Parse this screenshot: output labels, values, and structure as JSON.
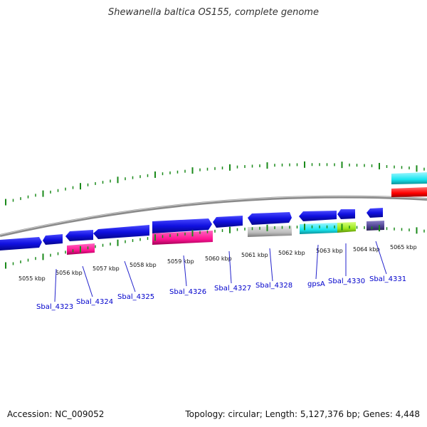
{
  "title": "Shewanella baltica OS155, complete genome",
  "footer": {
    "accession": "Accession: NC_009052",
    "stats": "Topology: circular; Length: 5,127,376 bp; Genes: 4,448"
  },
  "colors": {
    "cds": "#1010e0",
    "backbone": "#888888",
    "tick": "#1a8a1a",
    "cog_magenta": "#ff1493",
    "cog_gray": "#bdbdbd",
    "cog_cyan": "#19e6f0",
    "cog_lime": "#9be81a",
    "cog_purple": "#4b3f8f",
    "cog_red": "#ff0000",
    "label": "#0000cc"
  },
  "kbp_ticks": [
    "5055 kbp",
    "5056 kbp",
    "5057 kbp",
    "5058 kbp",
    "5059 kbp",
    "5060 kbp",
    "5061 kbp",
    "5062 kbp",
    "5063 kbp",
    "5064 kbp",
    "5065 kbp"
  ],
  "genes": [
    "Sbal_4323",
    "Sbal_4324",
    "Sbal_4325",
    "Sbal_4326",
    "Sbal_4327",
    "Sbal_4328",
    "gpsA",
    "Sbal_4330",
    "Sbal_4331"
  ]
}
